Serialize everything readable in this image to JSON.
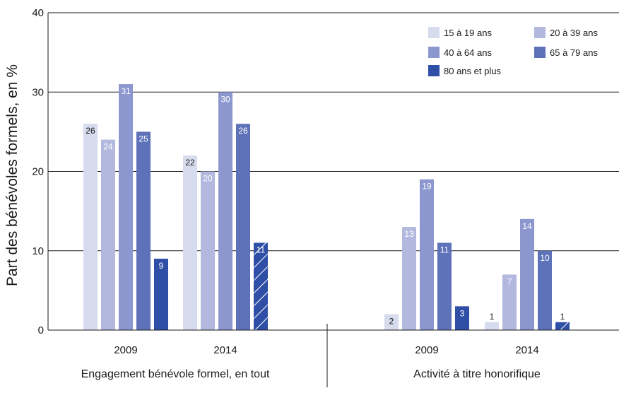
{
  "chart_data": {
    "type": "bar",
    "ylabel": "Part des bénévoles formels, en %",
    "ylim": [
      0,
      40
    ],
    "yticks": [
      0,
      10,
      20,
      30,
      40
    ],
    "grid": true,
    "legend_position": "top-right",
    "series": [
      {
        "name": "15 à 19 ans",
        "color": "#d6dbed",
        "label_color": "#1a1a1a"
      },
      {
        "name": "20 à 39 ans",
        "color": "#b3b8de",
        "label_color": "#ffffff"
      },
      {
        "name": "40 à 64 ans",
        "color": "#8d97cf",
        "label_color": "#ffffff"
      },
      {
        "name": "65 à 79 ans",
        "color": "#5e72b9",
        "label_color": "#ffffff"
      },
      {
        "name": "80 ans et plus",
        "color": "#2f4fa6",
        "label_color": "#ffffff"
      }
    ],
    "groups": [
      {
        "label": "Engagement bénévole formel, en tout",
        "years": [
          {
            "year": "2009",
            "values": [
              26,
              24,
              31,
              25,
              9
            ],
            "hatched": [
              false,
              false,
              false,
              false,
              false
            ]
          },
          {
            "year": "2014",
            "values": [
              22,
              20,
              30,
              26,
              11
            ],
            "hatched": [
              false,
              false,
              false,
              false,
              true
            ]
          }
        ]
      },
      {
        "label": "Activité à titre honorifique",
        "years": [
          {
            "year": "2009",
            "values": [
              2,
              13,
              19,
              11,
              3
            ],
            "hatched": [
              false,
              false,
              false,
              false,
              false
            ]
          },
          {
            "year": "2014",
            "values": [
              1,
              7,
              14,
              10,
              1
            ],
            "hatched": [
              false,
              false,
              false,
              false,
              true
            ]
          }
        ]
      }
    ]
  }
}
